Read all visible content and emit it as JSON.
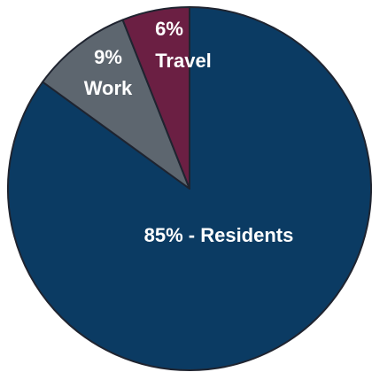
{
  "chart_data": {
    "type": "pie",
    "title": "",
    "slices": [
      {
        "label": "85% - Residents",
        "value": 85,
        "color": "#0b3b63"
      },
      {
        "label_lines": [
          "9%",
          "Work"
        ],
        "value": 9,
        "color": "#5d666f"
      },
      {
        "label_lines": [
          "6%",
          "Travel"
        ],
        "value": 6,
        "color": "#6b1f43"
      }
    ]
  }
}
